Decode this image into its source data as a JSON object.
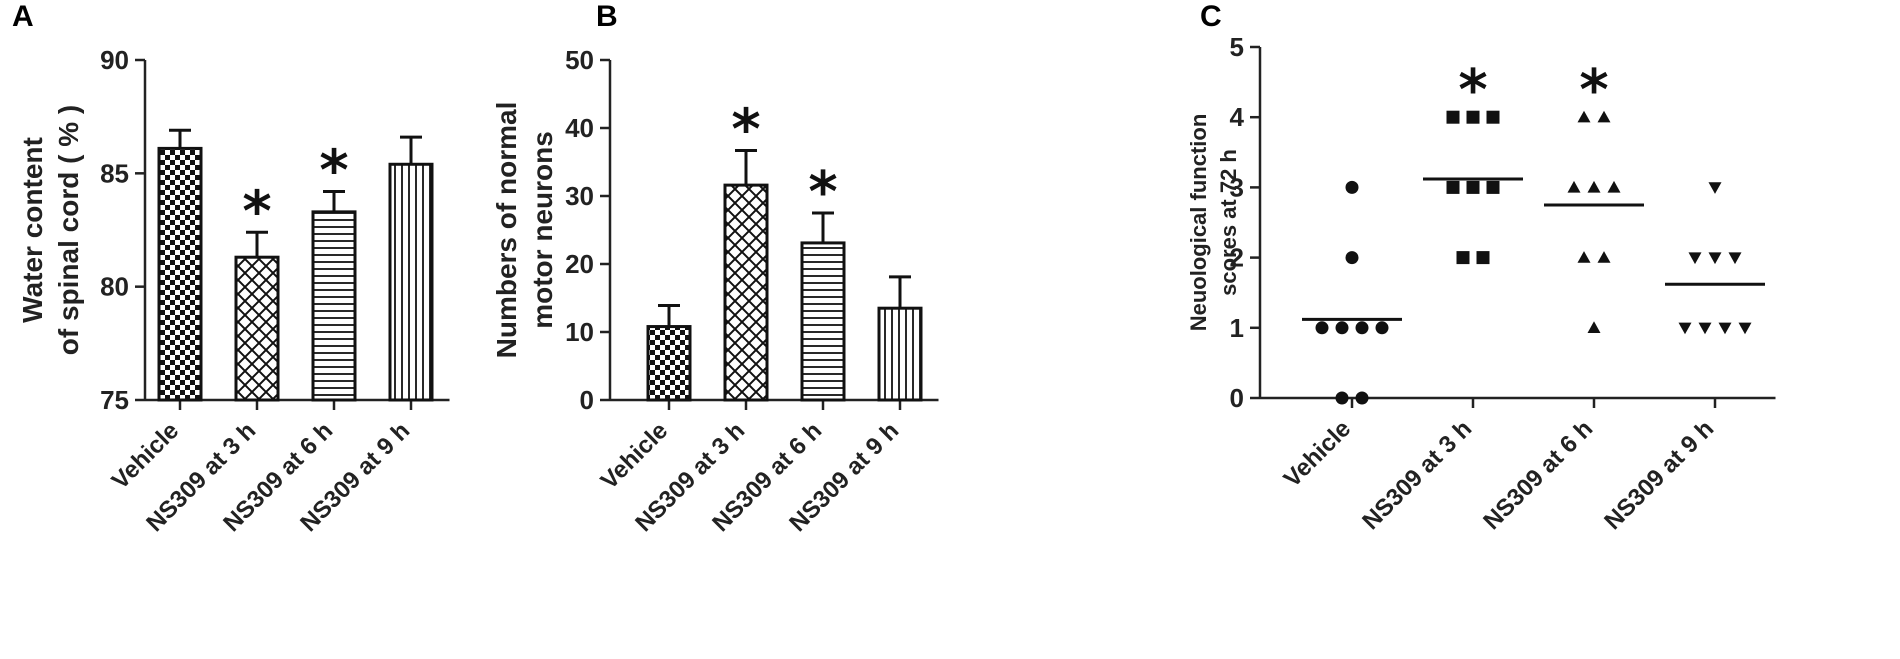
{
  "panels": {
    "a": {
      "letter": "A"
    },
    "b": {
      "letter": "B"
    },
    "c": {
      "letter": "C"
    }
  },
  "chart_data": [
    {
      "type": "bar",
      "panel": "A",
      "ylabel_lines": [
        "Water content",
        "of spinal cord ( % )"
      ],
      "ylim": [
        75,
        90
      ],
      "yticks": [
        75,
        80,
        85,
        90
      ],
      "categories": [
        "Vehicle",
        "NS309 at 3 h",
        "NS309 at 6 h",
        "NS309 at 9 h"
      ],
      "values": [
        86.1,
        81.3,
        83.3,
        85.4
      ],
      "errors": [
        0.8,
        1.1,
        0.9,
        1.2
      ],
      "significance": [
        "",
        "*",
        "*",
        ""
      ],
      "patterns": [
        "checker",
        "crosshatch",
        "horizontal",
        "vertical"
      ]
    },
    {
      "type": "bar",
      "panel": "B",
      "ylabel_lines": [
        "Numbers of normal",
        "motor neurons"
      ],
      "ylim": [
        0,
        50
      ],
      "yticks": [
        0,
        10,
        20,
        30,
        40,
        50
      ],
      "categories": [
        "Vehicle",
        "NS309 at 3 h",
        "NS309 at 6 h",
        "NS309 at 9 h"
      ],
      "values": [
        10.8,
        31.6,
        23.1,
        13.5
      ],
      "errors": [
        3.1,
        5.1,
        4.4,
        4.6
      ],
      "significance": [
        "",
        "*",
        "*",
        ""
      ],
      "patterns": [
        "checker",
        "crosshatch",
        "horizontal",
        "vertical"
      ]
    },
    {
      "type": "scatter",
      "panel": "C",
      "ylabel_lines": [
        "Neuological function",
        "scores at 72 h"
      ],
      "ylim": [
        0,
        5
      ],
      "yticks": [
        0,
        1,
        2,
        3,
        4,
        5
      ],
      "categories": [
        "Vehicle",
        "NS309 at 3 h",
        "NS309 at 6 h",
        "NS309 at 9 h"
      ],
      "markers": [
        "circle",
        "square",
        "triangle-up",
        "triangle-down"
      ],
      "points": [
        [
          3,
          2,
          1,
          1,
          1,
          1,
          0,
          0
        ],
        [
          4,
          4,
          4,
          3,
          3,
          3,
          2,
          2
        ],
        [
          4,
          4,
          3,
          3,
          3,
          2,
          2,
          1
        ],
        [
          3,
          2,
          2,
          2,
          1,
          1,
          1,
          1
        ]
      ],
      "means": [
        1.12,
        3.12,
        2.75,
        1.62
      ],
      "significance": [
        "",
        "*",
        "*",
        ""
      ]
    }
  ]
}
